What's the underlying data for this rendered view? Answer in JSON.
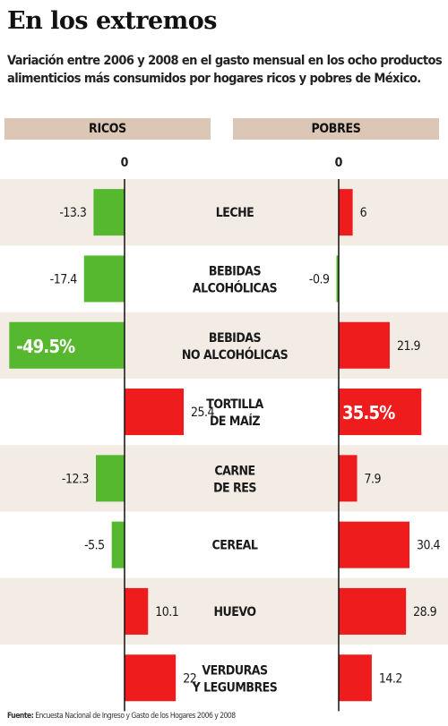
{
  "title": "En los extremos",
  "subtitle": "Variación entre 2006 y 2008 en el gasto mensual en los ocho productos alimenticios más consumidos por hogares ricos y pobres de México.",
  "headers": {
    "ricos": "RICOS",
    "pobres": "POBRES"
  },
  "zero_label": "0",
  "source": {
    "label": "Fuente:",
    "text": "Encuesta Nacional de Ingreso y Gasto de los Hogares 2006 y 2008"
  },
  "colors": {
    "header_bg": "#dcc6b5",
    "band": "#f2ece4",
    "negative": "#55b82e",
    "positive": "#ee1c1c",
    "text": "#1a1a1a"
  },
  "chart_data": {
    "type": "bar",
    "orientation": "horizontal",
    "unit": "%",
    "categories": [
      [
        "LECHE"
      ],
      [
        "BEBIDAS",
        "ALCOHÓLICAS"
      ],
      [
        "BEBIDAS",
        "NO ALCOHÓLICAS"
      ],
      [
        "TORTILLA",
        "DE MAÍZ"
      ],
      [
        "CARNE",
        "DE RES"
      ],
      [
        "CEREAL"
      ],
      [
        "HUEVO"
      ],
      [
        "VERDURAS",
        "Y LEGUMBRES"
      ]
    ],
    "series": [
      {
        "name": "RICOS",
        "values": [
          -13.3,
          -17.4,
          -49.5,
          25.4,
          -12.3,
          -5.5,
          10.1,
          22
        ],
        "labels": [
          "-13.3",
          "-17.4",
          "-49.5%",
          "25.4",
          "-12.3",
          "-5.5",
          "10.1",
          "22"
        ]
      },
      {
        "name": "POBRES",
        "values": [
          6,
          -0.9,
          21.9,
          35.5,
          7.9,
          30.4,
          28.9,
          14.2
        ],
        "labels": [
          "6",
          "-0.9",
          "21.9",
          "35.5%",
          "7.9",
          "30.4",
          "28.9",
          "14.2"
        ]
      }
    ],
    "highlight": {
      "ricos": 2,
      "pobres": 3
    }
  }
}
